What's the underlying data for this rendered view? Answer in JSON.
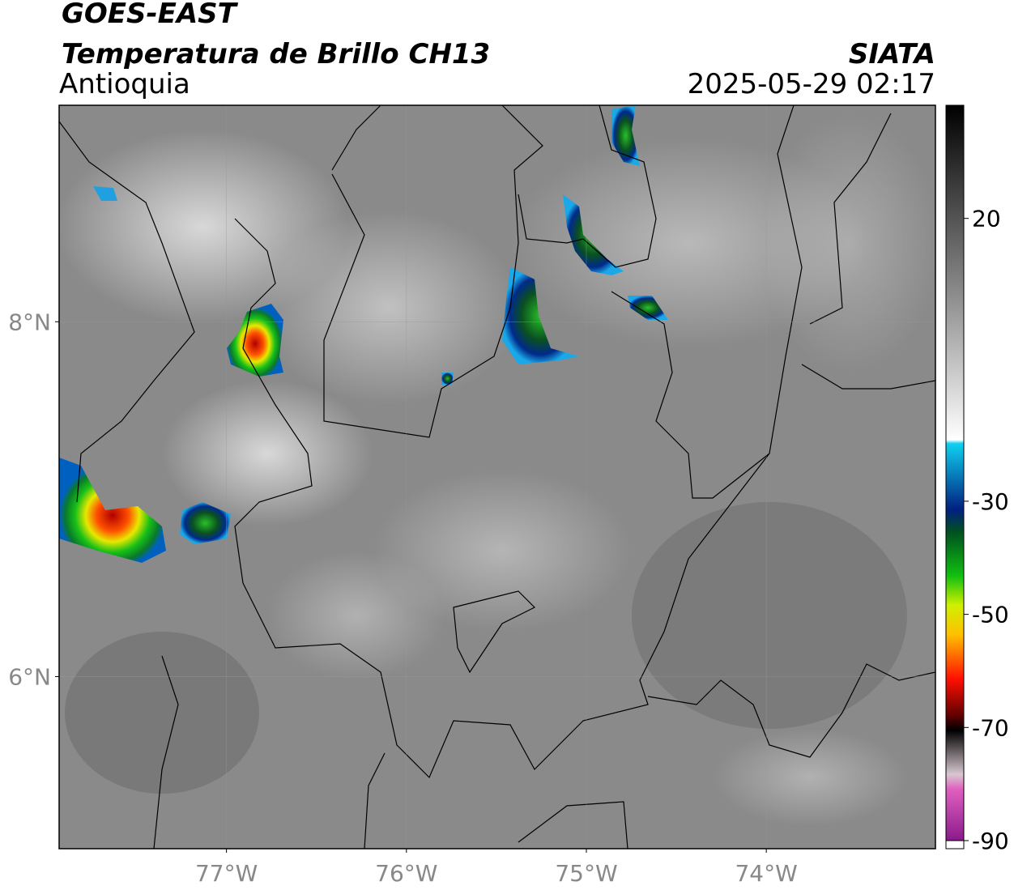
{
  "header": {
    "satellite": "GOES-EAST",
    "product": "Temperatura de Brillo CH13",
    "region": "Antioquia",
    "source": "SIATA",
    "datetime": "2025-05-29 02:17"
  },
  "map": {
    "xlim": [
      -77.93,
      -73.06
    ],
    "ylim": [
      5.03,
      9.22
    ],
    "xticks": [
      {
        "value": -77,
        "label": "77°W"
      },
      {
        "value": -76,
        "label": "76°W"
      },
      {
        "value": -75,
        "label": "75°W"
      },
      {
        "value": -74,
        "label": "74°W"
      }
    ],
    "yticks": [
      {
        "value": 8,
        "label": "8°N"
      },
      {
        "value": 6,
        "label": "6°N"
      }
    ],
    "grid": true
  },
  "colorbar": {
    "range": [
      -90,
      40
    ],
    "ticks": [
      20,
      -30,
      -50,
      -70,
      -90
    ]
  }
}
